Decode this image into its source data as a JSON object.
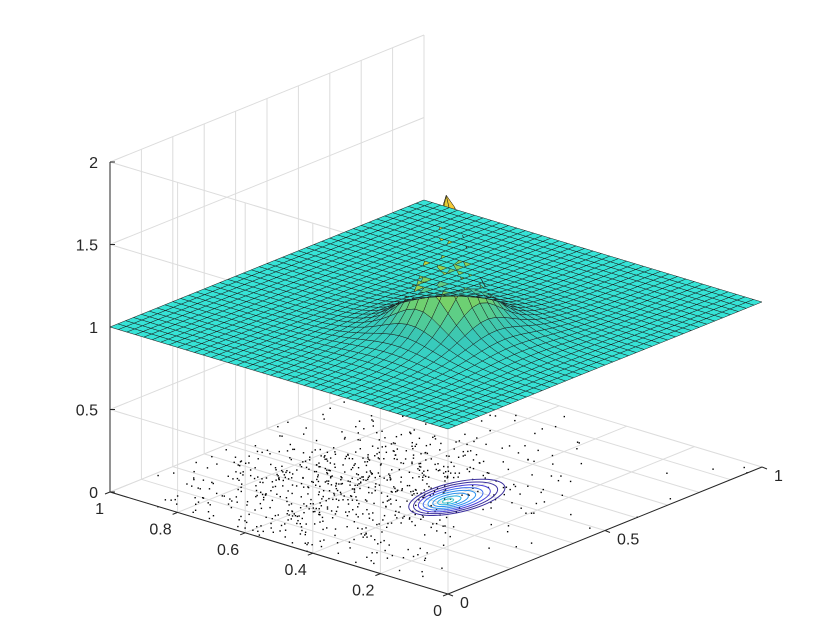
{
  "chart_data": {
    "type": "surface",
    "title": "",
    "xlabel": "",
    "ylabel": "",
    "zlabel": "",
    "xlim": [
      0,
      1
    ],
    "ylim": [
      0,
      1
    ],
    "zlim": [
      0,
      2
    ],
    "x_ticks": [
      {
        "value": 0,
        "label": "0"
      },
      {
        "value": 0.5,
        "label": "0.5"
      },
      {
        "value": 1,
        "label": "1"
      }
    ],
    "y_ticks": [
      {
        "value": 0,
        "label": "0"
      },
      {
        "value": 0.2,
        "label": "0.2"
      },
      {
        "value": 0.4,
        "label": "0.4"
      },
      {
        "value": 0.6,
        "label": "0.6"
      },
      {
        "value": 0.8,
        "label": "0.8"
      },
      {
        "value": 1,
        "label": "1"
      }
    ],
    "z_ticks": [
      {
        "value": 0,
        "label": "0"
      },
      {
        "value": 0.5,
        "label": "0.5"
      },
      {
        "value": 1,
        "label": "1"
      },
      {
        "value": 1.5,
        "label": "1.5"
      },
      {
        "value": 2,
        "label": "2"
      }
    ],
    "grid": true,
    "colormap": "parula",
    "surface": {
      "grid_points": 41,
      "baseline": 1.0,
      "peak_value": 2.0,
      "peak_x": 0.42,
      "peak_y": 0.39,
      "description_function": "z = 1 + exp(-r/0.07) peak over flat plane at z=1"
    },
    "scatter": {
      "z": 0,
      "count": 800,
      "color": "#000000",
      "center_x": 0.35,
      "center_y": 0.6,
      "spread": 0.2
    },
    "contour": {
      "z": 0,
      "center_x": 0.42,
      "center_y": 0.39,
      "levels": 8,
      "colors": [
        "#3b2f9e",
        "#4a3fd8",
        "#3f6df0",
        "#2e93ee",
        "#24b2e6",
        "#38c8cf"
      ]
    }
  }
}
